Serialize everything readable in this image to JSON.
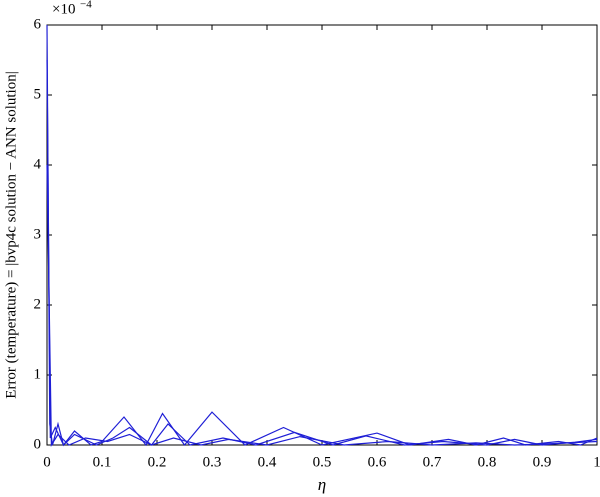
{
  "chart_data": {
    "type": "line",
    "y_label": "Error (temperature) = |bvp4c solution − ANN solution|",
    "x_label": "η",
    "y_scale_base": "×10",
    "y_scale_exponent": "−4",
    "xlim": [
      0,
      1
    ],
    "xticks": [
      0,
      0.1,
      0.2,
      0.3,
      0.4,
      0.5,
      0.6,
      0.7,
      0.8,
      0.9,
      1
    ],
    "ylim": [
      0,
      6
    ],
    "yticks": [
      0,
      1,
      2,
      3,
      4,
      5,
      6
    ],
    "grid": false,
    "series": [
      {
        "color": "#1f1fd6",
        "x": [
          0,
          0.005,
          0.01,
          0.02,
          0.03,
          0.05,
          0.08,
          0.1,
          0.14,
          0.18,
          0.21,
          0.25,
          0.3,
          0.36,
          0.43,
          0.5,
          0.6,
          0.66,
          0.73,
          0.78,
          0.83,
          0.87,
          0.93,
          0.97,
          1.0
        ],
        "values": [
          6,
          0.3,
          0,
          0.3,
          0,
          0.2,
          0,
          0.05,
          0.4,
          0,
          0.45,
          0,
          0.47,
          0,
          0.25,
          0,
          0.17,
          0,
          0.08,
          0,
          0.1,
          0,
          0.05,
          0,
          0.1
        ]
      },
      {
        "color": "#1f1fd6",
        "x": [
          0,
          0.006,
          0.015,
          0.03,
          0.05,
          0.09,
          0.12,
          0.15,
          0.19,
          0.22,
          0.26,
          0.32,
          0.38,
          0.45,
          0.52,
          0.58,
          0.65,
          0.72,
          0.8,
          0.85,
          0.9,
          0.96,
          1.0
        ],
        "values": [
          5.5,
          0.1,
          0.25,
          0,
          0.15,
          0,
          0.1,
          0.25,
          0,
          0.3,
          0,
          0.1,
          0,
          0.18,
          0,
          0.13,
          0,
          0.05,
          0,
          0.08,
          0,
          0.04,
          0.08
        ]
      },
      {
        "color": "#1f1fd6",
        "x": [
          0,
          0.008,
          0.02,
          0.04,
          0.07,
          0.11,
          0.15,
          0.19,
          0.23,
          0.28,
          0.33,
          0.4,
          0.46,
          0.54,
          0.62,
          0.7,
          0.78,
          0.85,
          0.92,
          1.0
        ],
        "values": [
          4,
          0,
          0.15,
          0,
          0.1,
          0.05,
          0.15,
          0,
          0.1,
          0,
          0.08,
          0,
          0.12,
          0,
          0.05,
          0,
          0.03,
          0,
          0.02,
          0.05
        ]
      }
    ]
  }
}
